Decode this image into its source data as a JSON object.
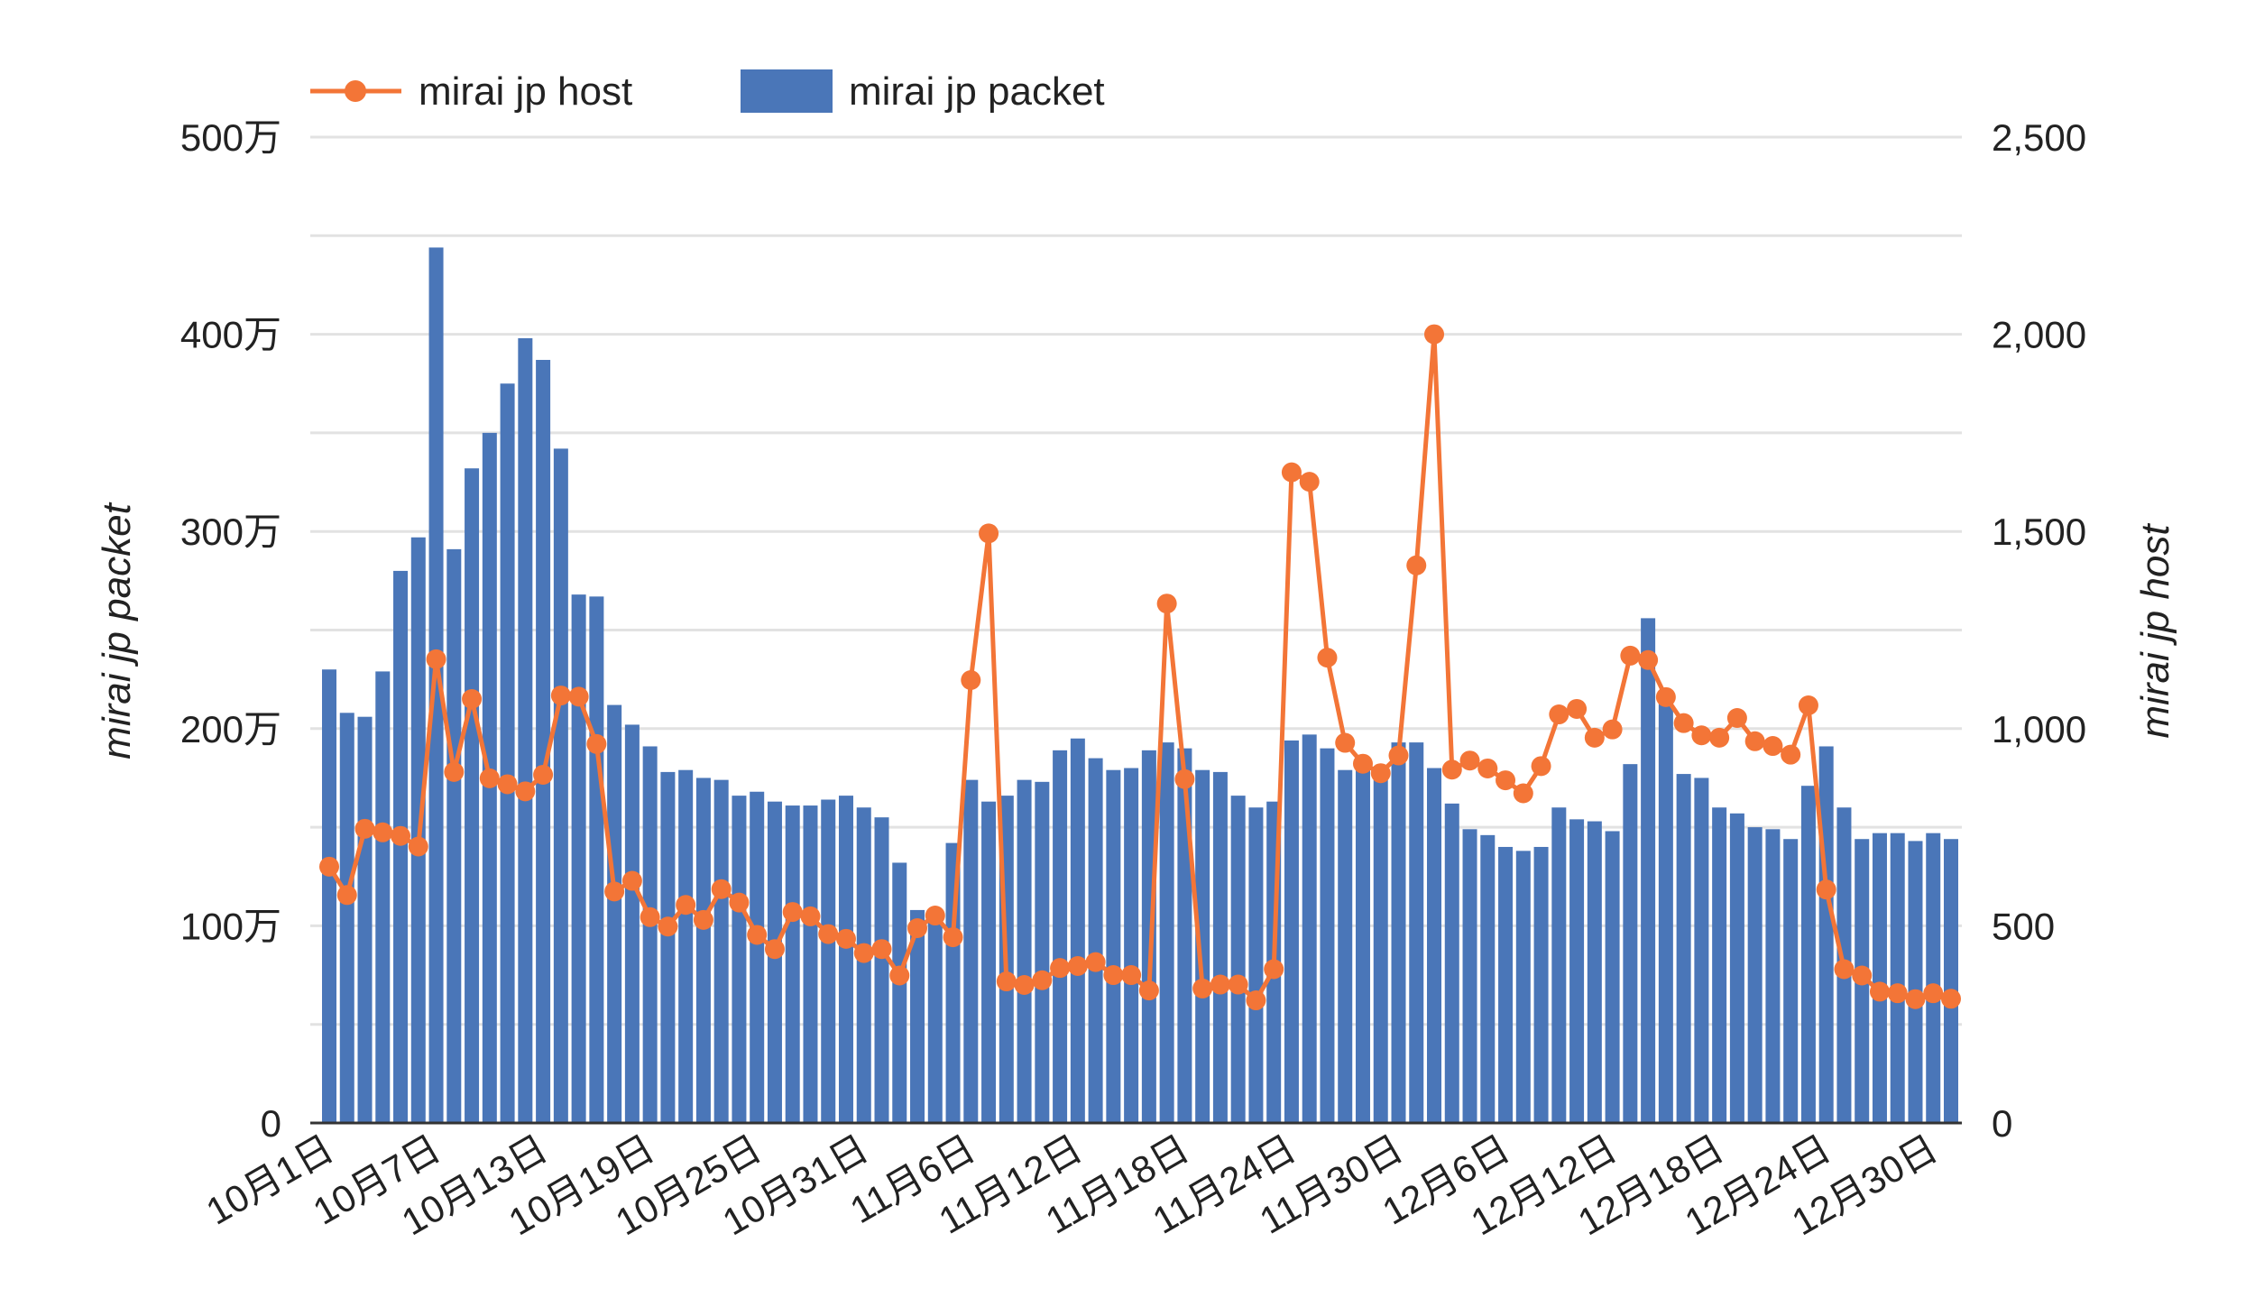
{
  "chart_data": {
    "type": "bar+line",
    "title": "",
    "legend": {
      "placement": "top-left",
      "entries": [
        {
          "label": "mirai jp host",
          "kind": "line-marker",
          "color": "#f37537"
        },
        {
          "label": "mirai jp packet",
          "kind": "bar",
          "color": "#4a76b8"
        }
      ]
    },
    "ylabel_left": "mirai jp packet",
    "ylabel_right": "mirai jp host",
    "ylim_left": [
      0,
      5000000
    ],
    "ylim_right": [
      0,
      2500
    ],
    "yticks_left": [
      "0",
      "100万",
      "200万",
      "300万",
      "400万",
      "500万"
    ],
    "yticks_right": [
      "0",
      "500",
      "1,000",
      "1,500",
      "2,000",
      "2,500"
    ],
    "grid": true,
    "xtick_labels": [
      "10月1日",
      "10月7日",
      "10月13日",
      "10月19日",
      "10月25日",
      "10月31日",
      "11月6日",
      "11月12日",
      "11月18日",
      "11月24日",
      "11月30日",
      "12月6日",
      "12月12日",
      "12月18日",
      "12月24日",
      "12月30日"
    ],
    "x_start": "10月1日",
    "x_end": "12月31日",
    "series": [
      {
        "name": "mirai jp packet",
        "type": "bar",
        "axis": "left",
        "color": "#4a76b8",
        "values_man": [
          230,
          208,
          206,
          229,
          280,
          297,
          444,
          291,
          332,
          350,
          375,
          398,
          387,
          342,
          268,
          267,
          212,
          202,
          191,
          178,
          179,
          175,
          174,
          166,
          168,
          163,
          161,
          161,
          164,
          166,
          160,
          155,
          132,
          108,
          107,
          142,
          174,
          163,
          166,
          174,
          173,
          189,
          195,
          185,
          179,
          180,
          189,
          193,
          190,
          179,
          178,
          166,
          160,
          163,
          194,
          197,
          190,
          179,
          181,
          176,
          193,
          193,
          180,
          162,
          149,
          146,
          140,
          138,
          140,
          160,
          154,
          153,
          148,
          182,
          256,
          213,
          177,
          175,
          160,
          157,
          150,
          149,
          144,
          171,
          191,
          160,
          144,
          147,
          147,
          143,
          147,
          144
        ]
      },
      {
        "name": "mirai jp host",
        "type": "line",
        "axis": "right",
        "color": "#f37537",
        "values": [
          650,
          578,
          746,
          737,
          728,
          701,
          1176,
          890,
          1075,
          874,
          859,
          841,
          883,
          1084,
          1081,
          961,
          587,
          614,
          522,
          498,
          553,
          515,
          593,
          559,
          477,
          441,
          535,
          524,
          479,
          467,
          431,
          441,
          374,
          494,
          526,
          471,
          1123,
          1495,
          359,
          350,
          362,
          393,
          398,
          408,
          375,
          375,
          336,
          1317,
          872,
          341,
          351,
          351,
          311,
          390,
          1650,
          1626,
          1180,
          964,
          911,
          887,
          932,
          1414,
          2000,
          896,
          919,
          899,
          869,
          836,
          905,
          1036,
          1050,
          977,
          998,
          1185,
          1174,
          1080,
          1014,
          983,
          977,
          1027,
          968,
          956,
          934,
          1059,
          592,
          390,
          374,
          333,
          329,
          314,
          329,
          315
        ]
      }
    ]
  }
}
